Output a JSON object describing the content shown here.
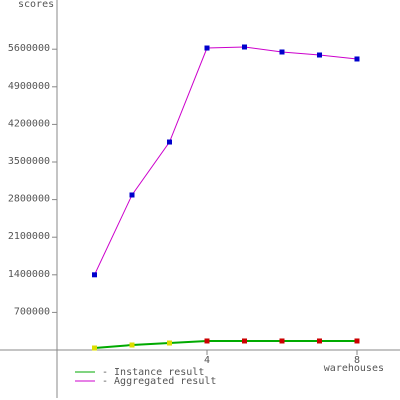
{
  "chart_data": {
    "type": "line",
    "y_label": "scores",
    "x_label": "warehouses",
    "x": [
      1,
      2,
      3,
      4,
      5,
      6,
      7,
      8
    ],
    "series": [
      {
        "name": "- Instance result",
        "color": "#00aa00",
        "marker_colors": [
          "#dddd00",
          "#dddd00",
          "#dddd00",
          "#cc0000",
          "#cc0000",
          "#cc0000",
          "#cc0000",
          "#cc0000"
        ],
        "values": [
          37000,
          93000,
          130000,
          168000,
          168000,
          168000,
          168000,
          168000
        ]
      },
      {
        "name": "- Aggregated result",
        "color": "#cc00cc",
        "marker_color": "#0000cc",
        "values": [
          1400000,
          2886000,
          3872000,
          5622000,
          5641000,
          5548000,
          5492000,
          5418000
        ]
      }
    ],
    "xlim": [
      0,
      9.147
    ],
    "ylim": [
      -893600,
      6516000
    ],
    "xticks": [
      4,
      8
    ],
    "yticks": [
      700000,
      1400000,
      2100000,
      2800000,
      3500000,
      4200000,
      4900000,
      5600000
    ]
  }
}
